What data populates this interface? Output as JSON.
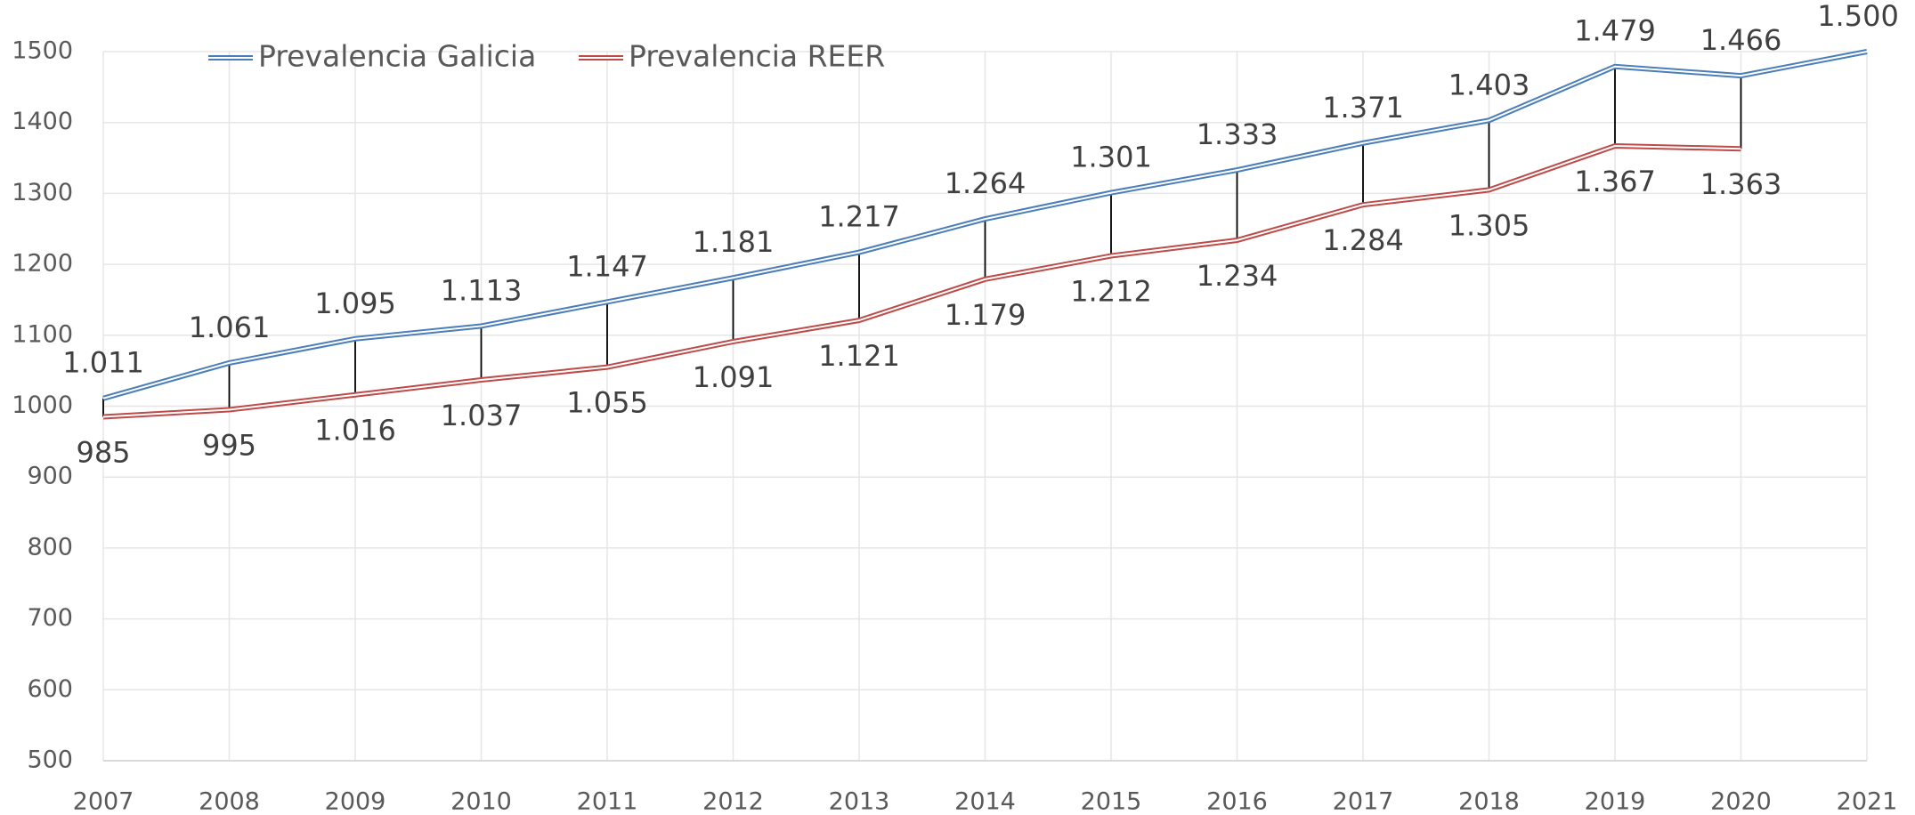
{
  "chart_data": {
    "type": "line",
    "categories": [
      "2007",
      "2008",
      "2009",
      "2010",
      "2011",
      "2012",
      "2013",
      "2014",
      "2015",
      "2016",
      "2017",
      "2018",
      "2019",
      "2020",
      "2021"
    ],
    "series": [
      {
        "name": "Prevalencia Galicia",
        "color": "#4a7ebb",
        "values": [
          1011,
          1061,
          1095,
          1113,
          1147,
          1181,
          1217,
          1264,
          1301,
          1333,
          1371,
          1403,
          1479,
          1466,
          1500
        ],
        "value_labels": [
          "1.011",
          "1.061",
          "1.095",
          "1.113",
          "1.147",
          "1.181",
          "1.217",
          "1.264",
          "1.301",
          "1.333",
          "1.371",
          "1.403",
          "1.479",
          "1.466",
          "1.500"
        ]
      },
      {
        "name": "Prevalencia REER",
        "color": "#be4b48",
        "values": [
          985,
          995,
          1016,
          1037,
          1055,
          1091,
          1121,
          1179,
          1212,
          1234,
          1284,
          1305,
          1367,
          1363,
          null
        ],
        "value_labels": [
          "985",
          "995",
          "1.016",
          "1.037",
          "1.055",
          "1.091",
          "1.121",
          "1.179",
          "1.212",
          "1.234",
          "1.284",
          "1.305",
          "1.367",
          "1.363",
          null
        ]
      }
    ],
    "ylim": [
      500,
      1500
    ],
    "yticks": [
      500,
      600,
      700,
      800,
      900,
      1000,
      1100,
      1200,
      1300,
      1400,
      1500
    ],
    "grid": true,
    "legend": "top",
    "high_low_lines": true
  }
}
